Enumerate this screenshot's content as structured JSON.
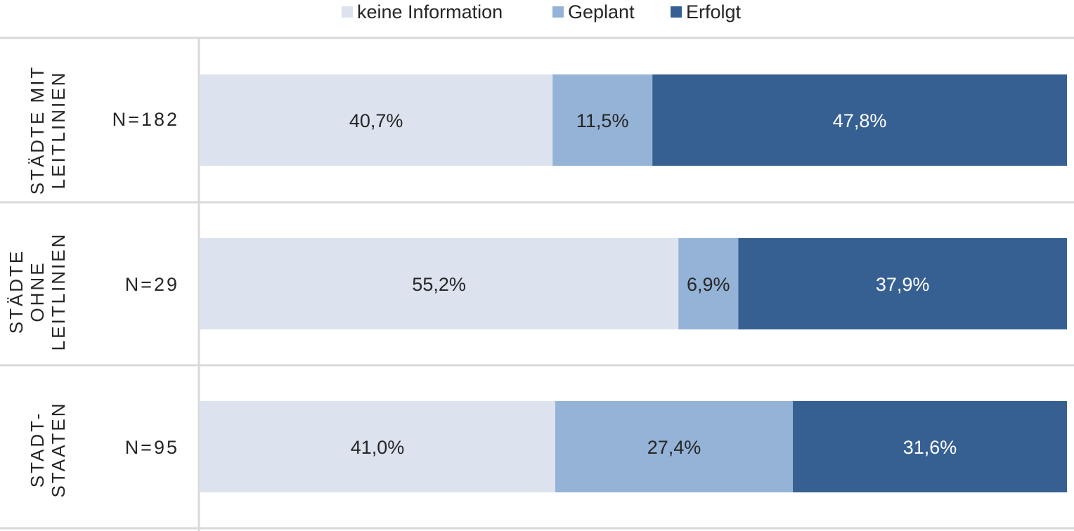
{
  "chart_data": {
    "type": "bar",
    "orientation": "horizontal",
    "stacked": true,
    "legend": {
      "placement": "top"
    },
    "series": [
      {
        "name": "keine Information",
        "color": "#dce3ee",
        "values": [
          40.7,
          55.2,
          41.0
        ],
        "labels": [
          "40,7%",
          "55,2%",
          "41,0%"
        ]
      },
      {
        "name": "Geplant",
        "color": "#95b3d7",
        "values": [
          11.5,
          6.9,
          27.4
        ],
        "labels": [
          "11,5%",
          "6,9%",
          "27,4%"
        ]
      },
      {
        "name": "Erfolgt",
        "color": "#366092",
        "values": [
          47.8,
          37.9,
          31.6
        ],
        "labels": [
          "47,8%",
          "37,9%",
          "31,6%"
        ]
      }
    ],
    "categories": [
      {
        "group_label": "STÄDTE MIT\nLEITLINIEN",
        "n_label": "N=182"
      },
      {
        "group_label": "STÄDTE\nOHNE\nLEITLINIEN",
        "n_label": "N=29"
      },
      {
        "group_label": "STADT-\nSTAATEN",
        "n_label": "N=95"
      }
    ],
    "xlim": [
      0,
      100
    ],
    "grid": false
  }
}
